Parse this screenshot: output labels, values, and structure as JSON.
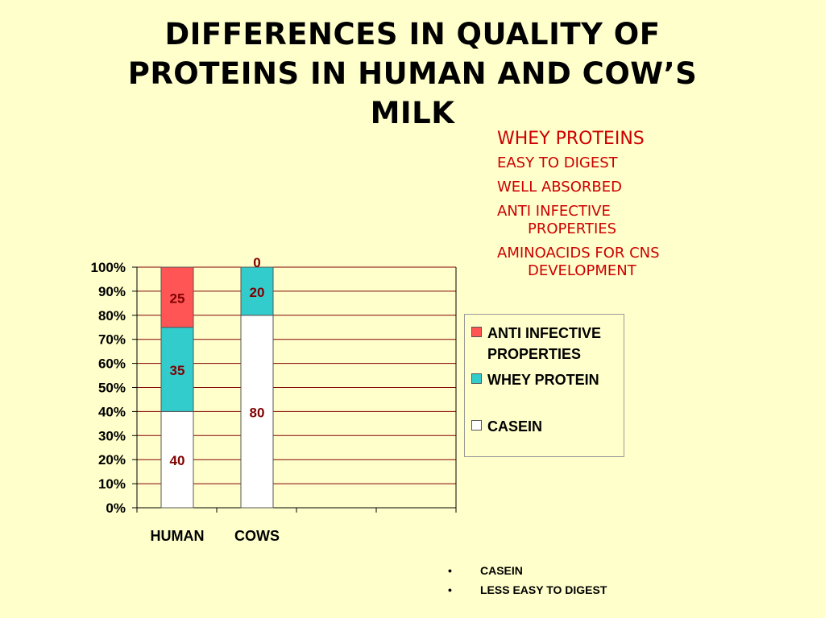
{
  "title": "DIFFERENCES IN QUALITY OF\nPROTEINS IN HUMAN AND COW’S\nMILK",
  "whey_box": {
    "heading": "WHEY PROTEINS",
    "items": [
      {
        "line1": "EASY TO DIGEST",
        "line2": ""
      },
      {
        "line1": "WELL ABSORBED",
        "line2": ""
      },
      {
        "line1": "ANTI INFECTIVE",
        "line2": "PROPERTIES"
      },
      {
        "line1": "AMINOACIDS FOR CNS",
        "line2": "DEVELOPMENT"
      }
    ]
  },
  "bottom_bullets": [
    "CASEIN",
    "LESS EASY TO DIGEST"
  ],
  "colors": {
    "background": "#ffffcc",
    "casein": "#ffffff",
    "whey": "#33cccc",
    "anti_infective": "#ff5555",
    "label": "#800000",
    "whey_text": "#cc0000"
  },
  "chart_data": {
    "type": "bar",
    "stacked": "percent",
    "categories": [
      "HUMAN",
      "COWS"
    ],
    "series": [
      {
        "name": "CASEIN",
        "values": [
          40,
          80
        ]
      },
      {
        "name": "WHEY PROTEIN",
        "values": [
          35,
          20
        ]
      },
      {
        "name": "ANTI INFECTIVE PROPERTIES",
        "values": [
          25,
          0
        ]
      }
    ],
    "y_ticks": [
      "0%",
      "10%",
      "20%",
      "30%",
      "40%",
      "50%",
      "60%",
      "70%",
      "80%",
      "90%",
      "100%"
    ],
    "ylim": [
      0,
      100
    ],
    "grid": true,
    "legend": "right",
    "data_labels": true
  }
}
